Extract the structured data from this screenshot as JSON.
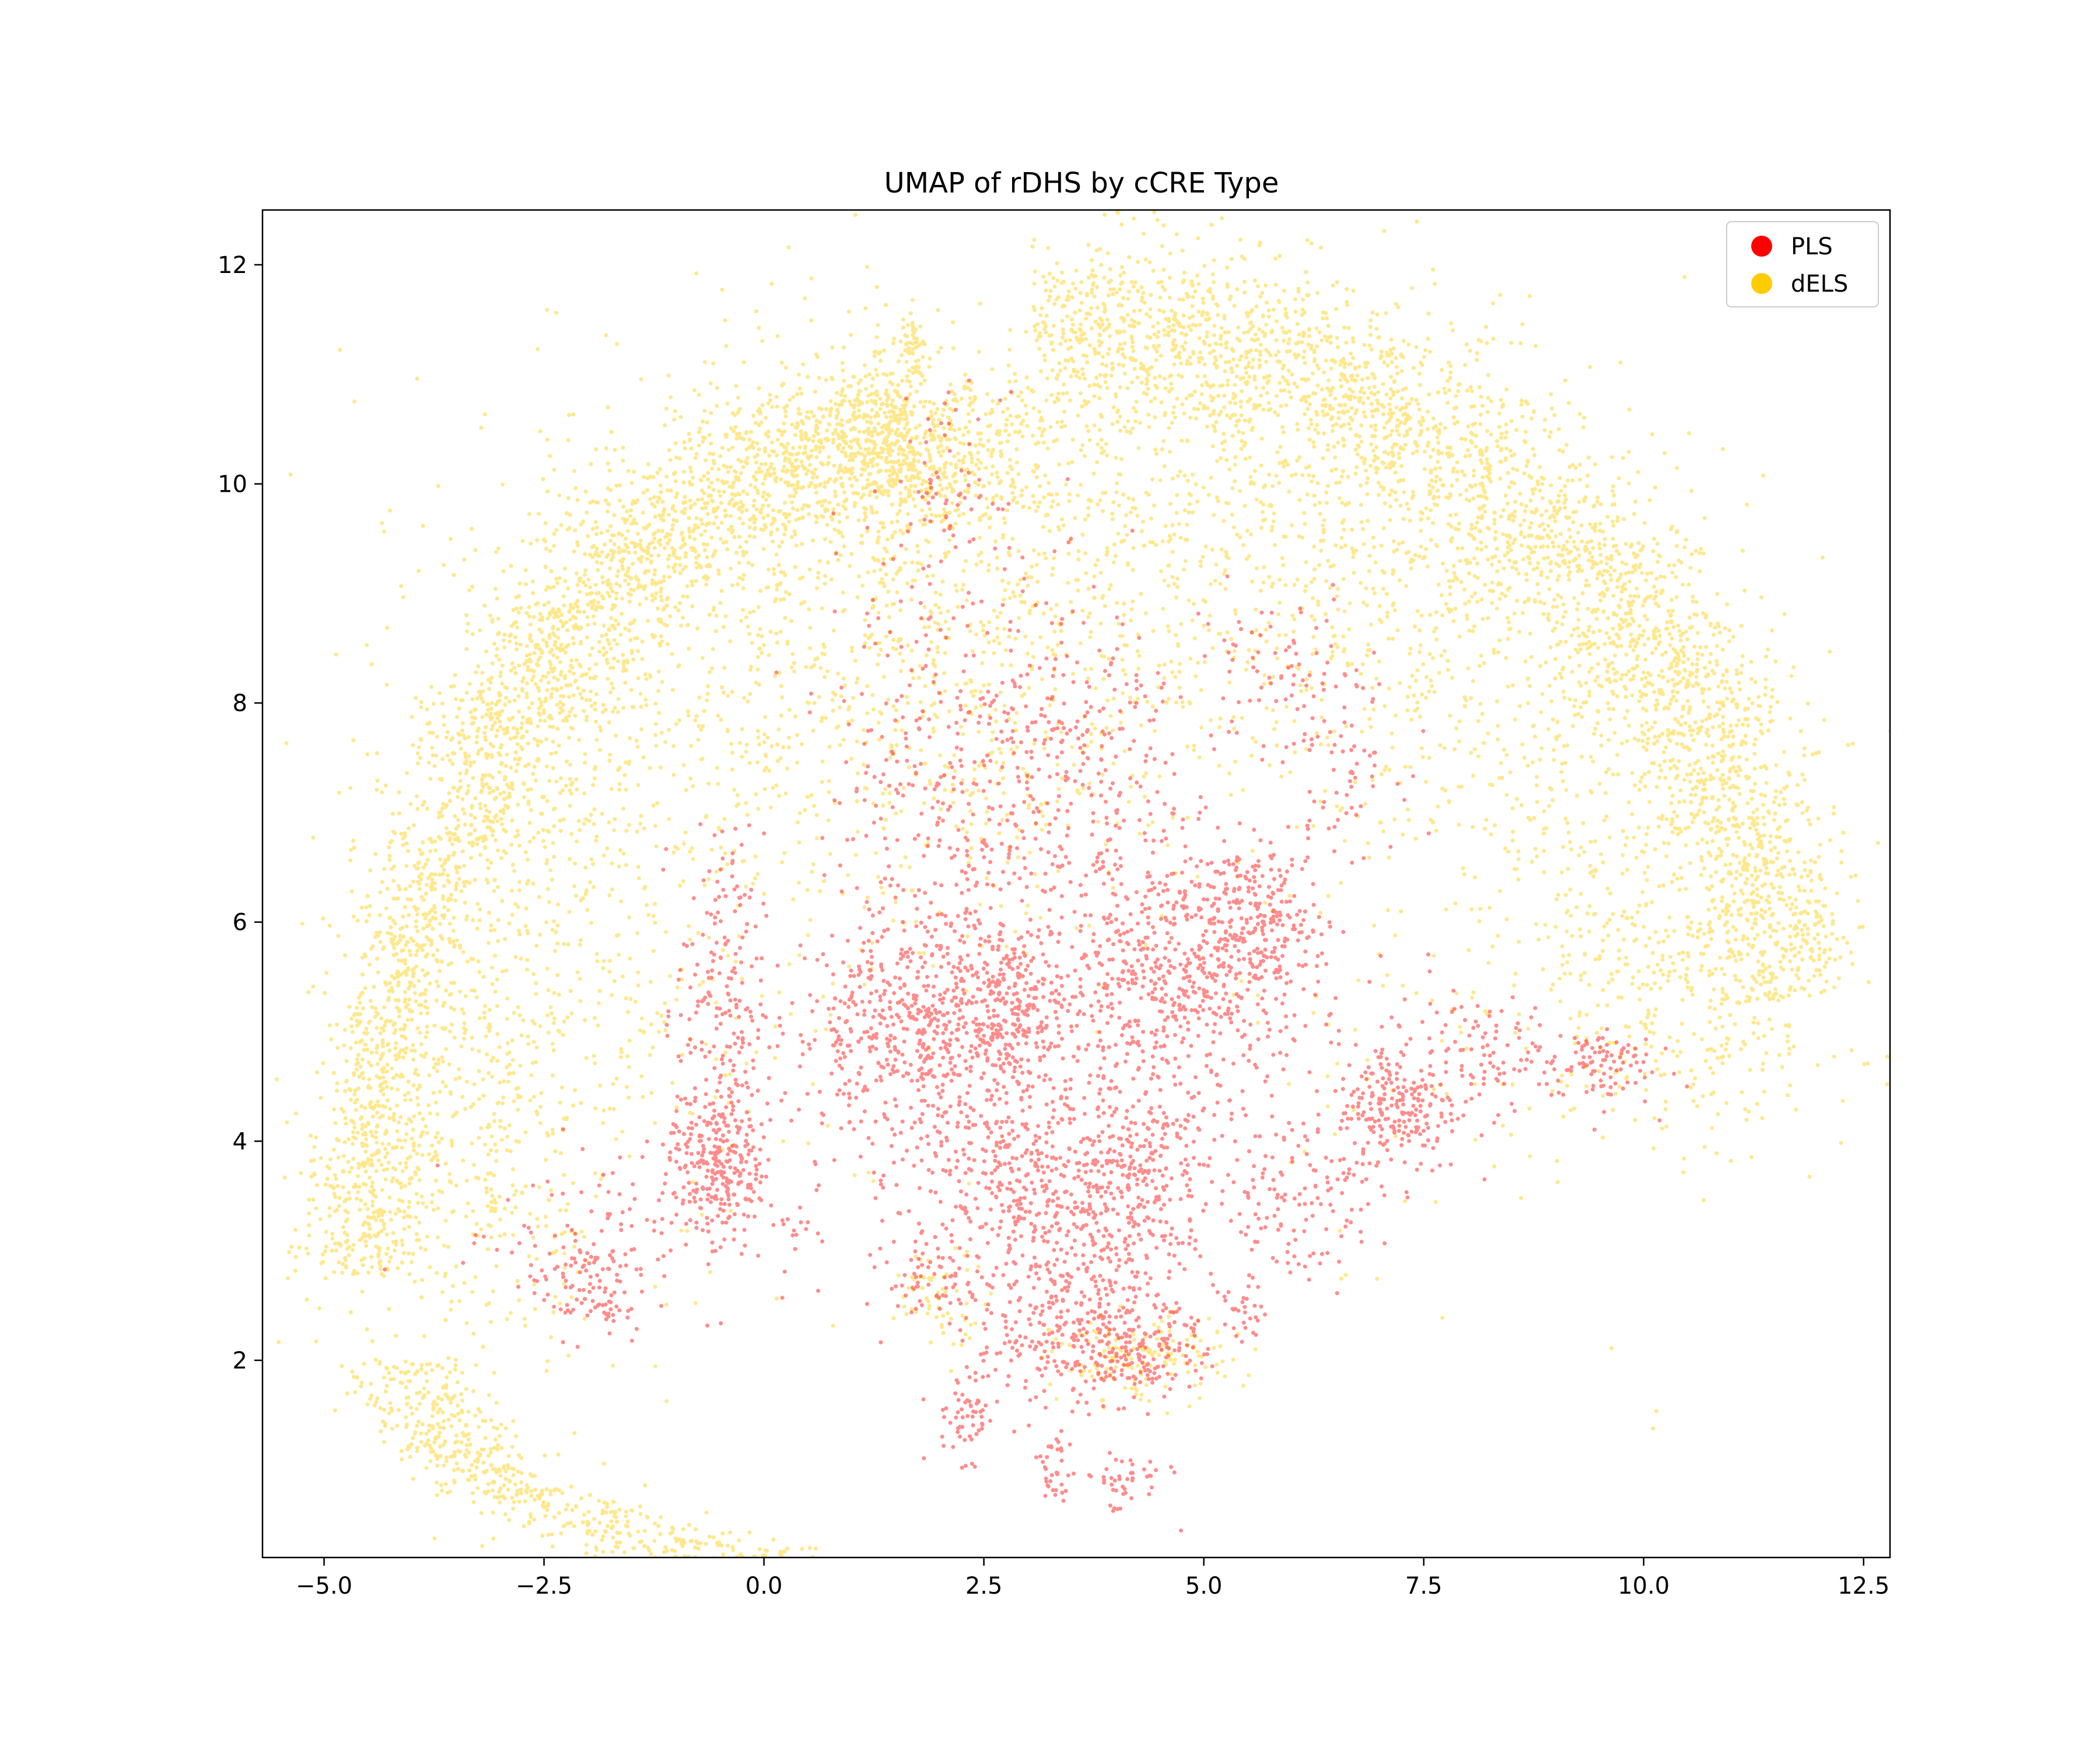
{
  "chart_data": {
    "type": "scatter",
    "title": "UMAP of rDHS by cCRE Type",
    "xlabel": "",
    "ylabel": "",
    "xlim": [
      -5.7,
      12.8
    ],
    "ylim": [
      0.2,
      12.5
    ],
    "x_ticks": [
      -5.0,
      -2.5,
      0.0,
      2.5,
      5.0,
      7.5,
      10.0,
      12.5
    ],
    "x_tick_labels": [
      "−5.0",
      "−2.5",
      "0.0",
      "2.5",
      "5.0",
      "7.5",
      "10.0",
      "12.5"
    ],
    "y_ticks": [
      2,
      4,
      6,
      8,
      10,
      12
    ],
    "y_tick_labels": [
      "2",
      "4",
      "6",
      "8",
      "10",
      "12"
    ],
    "grid": false,
    "legend_position": "top-right",
    "series": [
      {
        "name": "PLS",
        "color": "#ff0000",
        "clusters": [
          {
            "cx": 1.8,
            "cy": 5.0,
            "sx": 0.75,
            "sy": 0.5,
            "n": 600
          },
          {
            "cx": 2.8,
            "cy": 5.2,
            "sx": 0.35,
            "sy": 0.4,
            "n": 200
          },
          {
            "cx": 4.7,
            "cy": 5.5,
            "sx": 0.8,
            "sy": 0.6,
            "n": 650
          },
          {
            "cx": 5.6,
            "cy": 6.0,
            "sx": 0.4,
            "sy": 0.35,
            "n": 200
          },
          {
            "cx": 3.0,
            "cy": 3.6,
            "sx": 0.7,
            "sy": 0.5,
            "n": 420
          },
          {
            "cx": 4.2,
            "cy": 3.6,
            "sx": 0.5,
            "sy": 0.5,
            "n": 300
          },
          {
            "cx": 3.5,
            "cy": 2.3,
            "sx": 0.55,
            "sy": 0.35,
            "n": 300
          },
          {
            "cx": 4.4,
            "cy": 2.1,
            "sx": 0.35,
            "sy": 0.2,
            "n": 120
          },
          {
            "cx": -0.5,
            "cy": 3.8,
            "sx": 0.3,
            "sy": 0.3,
            "n": 240
          },
          {
            "cx": -0.5,
            "cy": 5.2,
            "sx": 0.25,
            "sy": 0.8,
            "n": 200
          },
          {
            "cx": 7.2,
            "cy": 4.3,
            "sx": 0.35,
            "sy": 0.3,
            "n": 220
          },
          {
            "cx": 6.0,
            "cy": 3.5,
            "sx": 0.5,
            "sy": 0.4,
            "n": 140
          },
          {
            "cx": 8.2,
            "cy": 4.8,
            "sx": 0.6,
            "sy": 0.25,
            "n": 120
          },
          {
            "cx": 9.5,
            "cy": 4.7,
            "sx": 0.3,
            "sy": 0.2,
            "n": 80
          },
          {
            "cx": -2.0,
            "cy": 2.7,
            "sx": 0.35,
            "sy": 0.25,
            "n": 120
          },
          {
            "cx": 2.2,
            "cy": 7.3,
            "sx": 0.7,
            "sy": 1.1,
            "n": 380
          },
          {
            "cx": 3.7,
            "cy": 7.4,
            "sx": 0.6,
            "sy": 0.8,
            "n": 200
          },
          {
            "cx": 5.8,
            "cy": 8.3,
            "sx": 0.5,
            "sy": 0.4,
            "n": 80
          },
          {
            "cx": 6.6,
            "cy": 7.5,
            "sx": 0.3,
            "sy": 0.4,
            "n": 60
          },
          {
            "cx": 2.1,
            "cy": 10.0,
            "sx": 0.3,
            "sy": 0.4,
            "n": 60
          },
          {
            "cx": 2.3,
            "cy": 1.5,
            "sx": 0.2,
            "sy": 0.2,
            "n": 60
          },
          {
            "cx": 3.3,
            "cy": 0.95,
            "sx": 0.1,
            "sy": 0.2,
            "n": 35
          },
          {
            "cx": 4.1,
            "cy": 0.9,
            "sx": 0.25,
            "sy": 0.15,
            "n": 45
          },
          {
            "cx": 5.4,
            "cy": 2.4,
            "sx": 0.15,
            "sy": 0.15,
            "n": 25
          },
          {
            "cx": 2.0,
            "cy": 2.7,
            "sx": 0.3,
            "sy": 0.2,
            "n": 60
          },
          {
            "cx": -1.0,
            "cy": 3.3,
            "sx": 1.2,
            "sy": 0.4,
            "n": 120
          }
        ]
      },
      {
        "name": "dELS",
        "color": "#ffcc00",
        "arcs": [
          {
            "cx": 3.5,
            "cy": 4.3,
            "rx": 8.2,
            "ry": 7.1,
            "a0": 8,
            "a1": 93,
            "w": 0.15,
            "n": 2400
          },
          {
            "cx": 2.0,
            "cy": 2.5,
            "rx": 6.6,
            "ry": 8.0,
            "a0": 93,
            "a1": 178,
            "w": 0.14,
            "n": 2300
          },
          {
            "cx": 2.0,
            "cy": 2.0,
            "rx": 6.0,
            "ry": 2.0,
            "a0": 180,
            "a1": 255,
            "w": 0.12,
            "n": 600
          },
          {
            "cx": 3.5,
            "cy": 4.3,
            "rx": 7.2,
            "ry": 6.5,
            "a0": 10,
            "a1": 90,
            "w": 0.35,
            "n": 900
          },
          {
            "cx": 2.0,
            "cy": 2.5,
            "rx": 5.6,
            "ry": 7.4,
            "a0": 95,
            "a1": 175,
            "w": 0.35,
            "n": 900
          }
        ],
        "clusters": [
          {
            "cx": 1.8,
            "cy": 10.3,
            "sx": 0.8,
            "sy": 0.4,
            "n": 600
          },
          {
            "cx": 1.7,
            "cy": 11.2,
            "sx": 0.08,
            "sy": 0.2,
            "n": 60
          },
          {
            "cx": 2.3,
            "cy": 8.5,
            "sx": 1.3,
            "sy": 1.2,
            "n": 700
          },
          {
            "cx": 5.5,
            "cy": 9.3,
            "sx": 1.6,
            "sy": 1.2,
            "n": 500
          },
          {
            "cx": -1.5,
            "cy": 7.0,
            "sx": 1.6,
            "sy": 2.0,
            "n": 500
          },
          {
            "cx": 9.0,
            "cy": 7.0,
            "sx": 1.8,
            "sy": 1.8,
            "n": 500
          },
          {
            "cx": 10.5,
            "cy": 5.0,
            "sx": 1.0,
            "sy": 0.5,
            "n": 200
          },
          {
            "cx": -3.5,
            "cy": 3.5,
            "sx": 1.0,
            "sy": 1.3,
            "n": 300
          },
          {
            "cx": 4.3,
            "cy": 2.0,
            "sx": 0.5,
            "sy": 0.2,
            "n": 150
          },
          {
            "cx": 2.0,
            "cy": 2.6,
            "sx": 0.3,
            "sy": 0.2,
            "n": 60
          }
        ]
      }
    ]
  }
}
